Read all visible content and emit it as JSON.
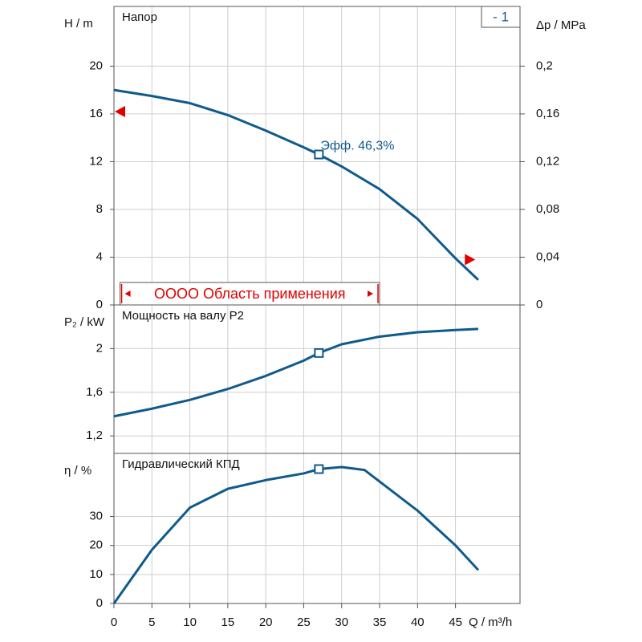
{
  "chart_data": [
    {
      "type": "line",
      "title": "Напор",
      "ylabel": "H / m",
      "y2label": "Δp / MPa",
      "x": [
        0,
        5,
        10,
        15,
        20,
        25,
        27,
        30,
        35,
        40,
        45,
        48
      ],
      "series": [
        {
          "name": "- 1",
          "color": "#105a8c",
          "values": [
            18,
            17.5,
            16.9,
            15.9,
            14.6,
            13.2,
            12.6,
            11.6,
            9.7,
            7.2,
            3.9,
            2.1
          ]
        }
      ],
      "marker": {
        "x": 27,
        "y": 12.6
      },
      "annotation": "Эфф.  46,3%",
      "limits": [
        {
          "x": 0,
          "y": 16.2
        },
        {
          "x": 47.5,
          "y": 3.8
        }
      ],
      "range": {
        "label": "OOOO Область применения",
        "x": [
          0.8,
          35
        ]
      },
      "xlim": [
        0,
        53.5
      ],
      "ylim": [
        0,
        25
      ],
      "yticks": [
        0,
        4,
        8,
        12,
        16,
        20
      ],
      "y2lim": [
        0,
        0.25
      ],
      "y2ticks": [
        {
          "value": 0,
          "label": "0"
        },
        {
          "value": 0.04,
          "label": "0,04"
        },
        {
          "value": 0.08,
          "label": "0,08"
        },
        {
          "value": 0.12,
          "label": "0,12"
        },
        {
          "value": 0.16,
          "label": "0,16"
        },
        {
          "value": 0.2,
          "label": "0,2"
        }
      ],
      "grid": true
    },
    {
      "type": "line",
      "title": "Мощность на валу P2",
      "ylabel": "P₂ / kW",
      "x": [
        0,
        5,
        10,
        15,
        20,
        25,
        27,
        30,
        35,
        40,
        45,
        48
      ],
      "series": [
        {
          "name": "P2",
          "color": "#105a8c",
          "values": [
            1.38,
            1.45,
            1.53,
            1.63,
            1.75,
            1.89,
            1.96,
            2.04,
            2.11,
            2.15,
            2.17,
            2.18
          ]
        }
      ],
      "marker": {
        "x": 27,
        "y": 1.96
      },
      "xlim": [
        0,
        53.5
      ],
      "ylim": [
        1.04,
        2.4
      ],
      "yticks": [
        {
          "value": 1.2,
          "label": "1,2"
        },
        {
          "value": 1.6,
          "label": "1,6"
        },
        {
          "value": 2,
          "label": "2"
        }
      ],
      "grid": true
    },
    {
      "type": "line",
      "title": "Гидравлический КПД",
      "ylabel": "η / %",
      "xlabel": "Q / m³/h",
      "x": [
        0,
        5,
        10,
        15,
        20,
        25,
        27,
        30,
        33,
        35,
        40,
        45,
        48
      ],
      "series": [
        {
          "name": "η",
          "color": "#105a8c",
          "values": [
            0,
            18.5,
            33,
            39.5,
            42.5,
            44.8,
            46.3,
            47,
            46,
            42,
            32,
            20,
            11.5
          ]
        }
      ],
      "marker": {
        "x": 27,
        "y": 46.3
      },
      "xlim": [
        0,
        53.5
      ],
      "ylim": [
        0,
        51.7
      ],
      "yticks": [
        0,
        10,
        20,
        30
      ],
      "xticks": [
        0,
        5,
        10,
        15,
        20,
        25,
        30,
        35,
        40,
        45
      ],
      "grid": true
    }
  ]
}
